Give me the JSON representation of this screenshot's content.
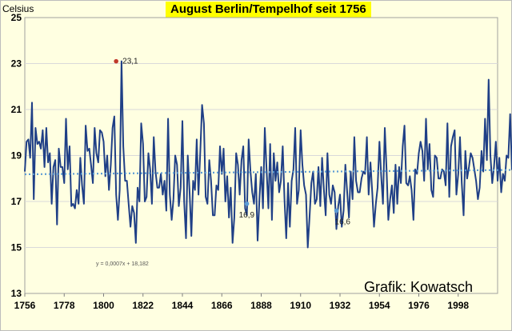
{
  "chart_data": {
    "type": "line",
    "title": "August Berlin/Tempelhof seit 1756",
    "ylabel": "Celsius",
    "xlabel": "",
    "ylim": [
      13,
      25
    ],
    "xlim": [
      1756,
      2020
    ],
    "y_ticks": [
      "13",
      "15",
      "17",
      "19",
      "21",
      "23",
      "25"
    ],
    "x_ticks": [
      "1756",
      "1778",
      "1800",
      "1822",
      "1844",
      "1866",
      "1888",
      "1910",
      "1932",
      "1954",
      "1976",
      "1998"
    ],
    "series": [
      {
        "name": "August mean temperature",
        "color": "#1f3f86",
        "x_start": 1756,
        "values": [
          18.3,
          19.6,
          19.7,
          18.9,
          21.3,
          17.1,
          20.2,
          19.5,
          19.6,
          19.3,
          20.1,
          18.5,
          20.2,
          18.7,
          19.1,
          16.9,
          18.5,
          18.8,
          16.0,
          19.3,
          18.5,
          18.5,
          17.8,
          20.6,
          18.4,
          19.4,
          16.8,
          16.9,
          16.7,
          17.5,
          16.9,
          18.9,
          17.7,
          16.9,
          20.3,
          19.2,
          19.3,
          18.6,
          17.8,
          20.2,
          19.1,
          18.7,
          20.1,
          20.0,
          19.6,
          18.1,
          19.0,
          17.5,
          18.6,
          20.2,
          20.7,
          17.3,
          16.2,
          17.5,
          23.1,
          19.4,
          17.9,
          17.9,
          16.9,
          15.9,
          16.8,
          16.5,
          15.2,
          17.6,
          17.0,
          20.4,
          19.5,
          17.0,
          17.2,
          19.1,
          18.4,
          16.9,
          19.8,
          18.3,
          17.6,
          17.6,
          18.2,
          17.3,
          17.9,
          16.6,
          20.6,
          17.3,
          16.2,
          17.1,
          19.0,
          18.6,
          16.8,
          17.6,
          20.5,
          17.0,
          15.4,
          19.0,
          17.4,
          15.5,
          17.9,
          17.5,
          19.7,
          17.3,
          19.2,
          21.2,
          20.4,
          17.2,
          16.9,
          18.8,
          17.9,
          16.4,
          16.4,
          17.7,
          17.5,
          19.4,
          18.2,
          19.3,
          17.0,
          18.1,
          16.3,
          17.6,
          15.2,
          16.3,
          19.1,
          18.6,
          17.3,
          18.8,
          19.4,
          16.7,
          16.4,
          19.7,
          18.3,
          17.4,
          16.9,
          18.2,
          15.3,
          17.1,
          18.5,
          16.7,
          20.2,
          18.4,
          16.7,
          19.5,
          16.2,
          19.1,
          17.9,
          18.7,
          17.4,
          17.9,
          19.4,
          17.1,
          15.4,
          17.8,
          15.9,
          17.9,
          18.4,
          20.2,
          16.9,
          17.5,
          20.1,
          18.6,
          17.7,
          17.3,
          15.0,
          16.3,
          17.8,
          18.3,
          16.9,
          17.1,
          18.5,
          16.8,
          18.9,
          17.5,
          16.4,
          19.1,
          17.3,
          16.9,
          17.7,
          17.4,
          15.8,
          16.8,
          17.3,
          15.9,
          16.6,
          18.6,
          17.4,
          16.3,
          18.3,
          17.1,
          19.8,
          17.9,
          17.4,
          17.4,
          18.0,
          18.3,
          18.2,
          19.8,
          17.3,
          18.7,
          17.4,
          15.9,
          16.9,
          17.6,
          19.6,
          18.1,
          16.9,
          20.2,
          18.4,
          16.2,
          17.1,
          17.7,
          16.5,
          18.6,
          16.9,
          18.5,
          17.8,
          19.4,
          20.3,
          17.8,
          17.7,
          18.1,
          17.5,
          16.2,
          18.4,
          18.2,
          19.1,
          19.6,
          19.2,
          17.9,
          20.6,
          18.4,
          19.5,
          17.5,
          17.2,
          19.0,
          18.9,
          18.0,
          18.0,
          18.4,
          18.3,
          17.7,
          20.4,
          17.2,
          19.4,
          19.8,
          20.1,
          17.3,
          18.2,
          19.8,
          17.8,
          16.4,
          19.2,
          18.0,
          18.5,
          19.1,
          18.9,
          18.4,
          17.9,
          17.1,
          17.6,
          19.2,
          18.3,
          20.6,
          18.8,
          22.3,
          19.0,
          17.8,
          18.5,
          19.6,
          17.9,
          18.9,
          17.4,
          18.2,
          17.9,
          19.0,
          18.9,
          20.8,
          18.4,
          19.0,
          19.3,
          19.4,
          19.7,
          18.2,
          22.6,
          19.1,
          19.3
        ]
      }
    ],
    "trendline": {
      "slope": 0.0007,
      "intercept": 18.182,
      "color": "#5b9bd5",
      "style": "dotted"
    },
    "trend_equation": "y = 0,0007x + 18,182",
    "annotations": [
      {
        "label": "23,1",
        "year": 1807,
        "value": 23.1
      },
      {
        "label": "16,9",
        "year": 1880,
        "value": 16.9
      },
      {
        "label": "16,6",
        "year": 1930,
        "value": 16.6
      }
    ],
    "gridlines": true
  },
  "credit": "Grafik: Kowatsch",
  "colors": {
    "background": "#ffffe1",
    "title_highlight": "#ffff00",
    "grid": "#d9d9d9",
    "series_line": "#1f3f86",
    "trend": "#5b9bd5",
    "max_marker": "#c0392b"
  }
}
